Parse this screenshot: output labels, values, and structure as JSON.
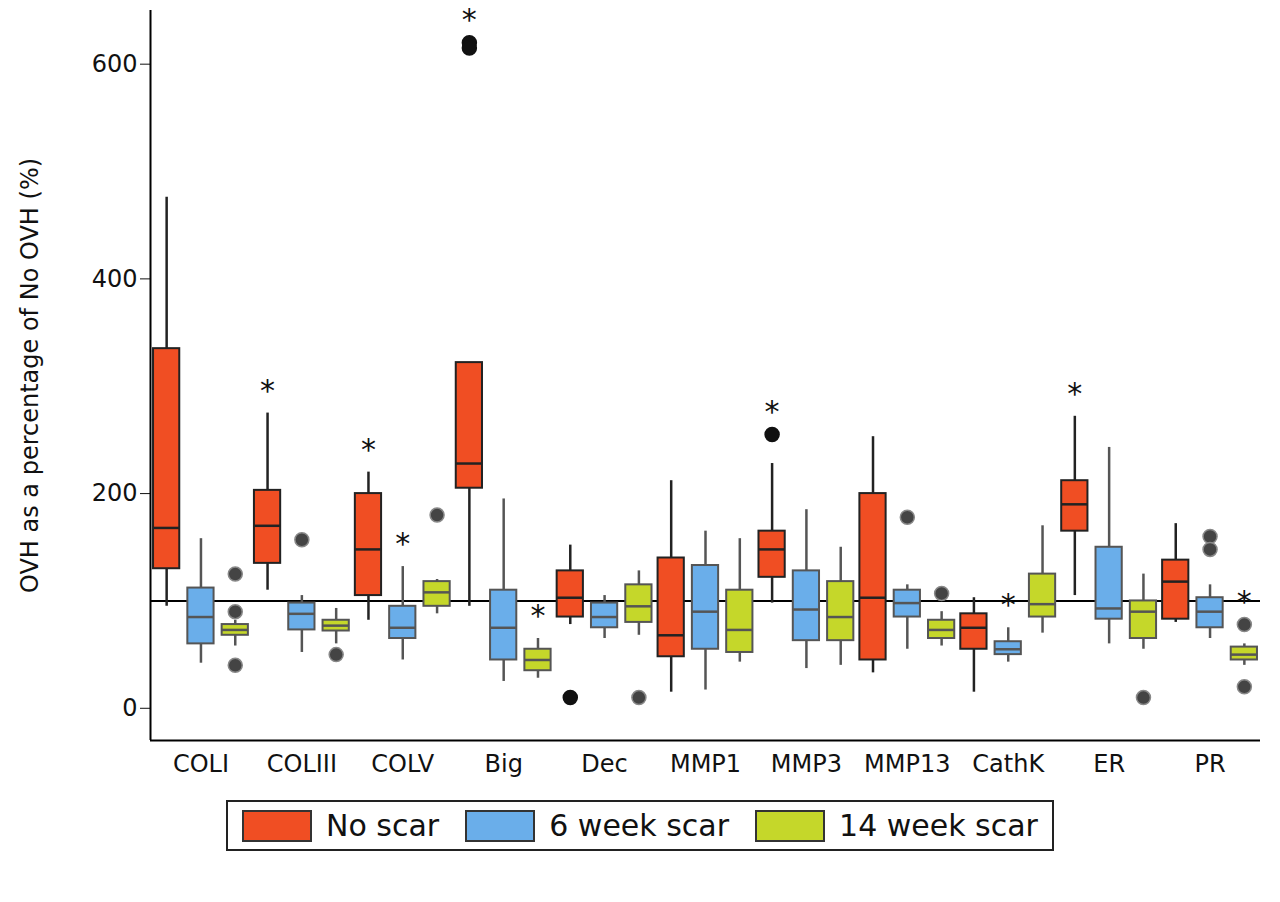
{
  "chart_data": {
    "type": "box",
    "y_label": "OVH as a percentage of No OVH (%)",
    "categories": [
      "COLI",
      "COLIII",
      "COLV",
      "Big",
      "Dec",
      "MMP1",
      "MMP3",
      "MMP13",
      "CathK",
      "ER",
      "PR"
    ],
    "ylim": [
      -30,
      650
    ],
    "yticks": [
      0,
      200,
      400,
      600
    ],
    "reference_line": 100,
    "significance_label": "*",
    "legend": "bottom",
    "series": [
      {
        "name": "No scar",
        "color": "#f04e23",
        "stats": [
          {
            "min": 95,
            "q1": 130,
            "median": 168,
            "q3": 335,
            "max": 476,
            "outliers": [],
            "significant": false
          },
          {
            "min": 110,
            "q1": 135,
            "median": 170,
            "q3": 203,
            "max": 275,
            "outliers": [],
            "significant": true
          },
          {
            "min": 82,
            "q1": 105,
            "median": 148,
            "q3": 200,
            "max": 220,
            "outliers": [],
            "significant": true
          },
          {
            "min": 95,
            "q1": 205,
            "median": 228,
            "q3": 322,
            "max": 322,
            "outliers": [
              620,
              615
            ],
            "significant": true
          },
          {
            "min": 78,
            "q1": 85,
            "median": 103,
            "q3": 128,
            "max": 152,
            "outliers": [
              10
            ],
            "significant": false
          },
          {
            "min": 15,
            "q1": 48,
            "median": 68,
            "q3": 140,
            "max": 212,
            "outliers": [],
            "significant": false
          },
          {
            "min": 98,
            "q1": 122,
            "median": 148,
            "q3": 165,
            "max": 228,
            "outliers": [
              255
            ],
            "significant": true
          },
          {
            "min": 33,
            "q1": 45,
            "median": 103,
            "q3": 200,
            "max": 253,
            "outliers": [],
            "significant": false
          },
          {
            "min": 15,
            "q1": 55,
            "median": 75,
            "q3": 88,
            "max": 103,
            "outliers": [],
            "significant": false
          },
          {
            "min": 105,
            "q1": 165,
            "median": 190,
            "q3": 212,
            "max": 272,
            "outliers": [],
            "significant": true
          },
          {
            "min": 80,
            "q1": 83,
            "median": 118,
            "q3": 138,
            "max": 172,
            "outliers": [],
            "significant": false
          }
        ]
      },
      {
        "name": "6 week scar",
        "color": "#6aaeea",
        "stats": [
          {
            "min": 42,
            "q1": 60,
            "median": 85,
            "q3": 112,
            "max": 158,
            "outliers": [],
            "significant": false
          },
          {
            "min": 52,
            "q1": 73,
            "median": 88,
            "q3": 98,
            "max": 105,
            "outliers": [
              157
            ],
            "significant": false
          },
          {
            "min": 45,
            "q1": 65,
            "median": 75,
            "q3": 95,
            "max": 132,
            "outliers": [],
            "significant": true
          },
          {
            "min": 25,
            "q1": 45,
            "median": 75,
            "q3": 110,
            "max": 195,
            "outliers": [],
            "significant": false
          },
          {
            "min": 65,
            "q1": 75,
            "median": 85,
            "q3": 98,
            "max": 105,
            "outliers": [],
            "significant": false
          },
          {
            "min": 17,
            "q1": 55,
            "median": 90,
            "q3": 133,
            "max": 165,
            "outliers": [],
            "significant": false
          },
          {
            "min": 37,
            "q1": 63,
            "median": 92,
            "q3": 128,
            "max": 185,
            "outliers": [],
            "significant": false
          },
          {
            "min": 55,
            "q1": 85,
            "median": 98,
            "q3": 110,
            "max": 115,
            "outliers": [
              178
            ],
            "significant": false
          },
          {
            "min": 43,
            "q1": 50,
            "median": 55,
            "q3": 62,
            "max": 75,
            "outliers": [],
            "significant": true
          },
          {
            "min": 60,
            "q1": 83,
            "median": 93,
            "q3": 150,
            "max": 243,
            "outliers": [],
            "significant": false
          },
          {
            "min": 65,
            "q1": 75,
            "median": 90,
            "q3": 103,
            "max": 115,
            "outliers": [
              160,
              148
            ],
            "significant": false
          }
        ]
      },
      {
        "name": "14 week scar",
        "color": "#c5d72a",
        "stats": [
          {
            "min": 58,
            "q1": 68,
            "median": 73,
            "q3": 78,
            "max": 82,
            "outliers": [
              125,
              90,
              40
            ],
            "significant": false
          },
          {
            "min": 60,
            "q1": 72,
            "median": 77,
            "q3": 82,
            "max": 93,
            "outliers": [
              50
            ],
            "significant": false
          },
          {
            "min": 88,
            "q1": 95,
            "median": 108,
            "q3": 118,
            "max": 120,
            "outliers": [
              180
            ],
            "significant": false
          },
          {
            "min": 28,
            "q1": 35,
            "median": 45,
            "q3": 55,
            "max": 65,
            "outliers": [],
            "significant": true
          },
          {
            "min": 68,
            "q1": 80,
            "median": 95,
            "q3": 115,
            "max": 128,
            "outliers": [
              10
            ],
            "significant": false
          },
          {
            "min": 43,
            "q1": 52,
            "median": 73,
            "q3": 110,
            "max": 158,
            "outliers": [],
            "significant": false
          },
          {
            "min": 40,
            "q1": 63,
            "median": 85,
            "q3": 118,
            "max": 150,
            "outliers": [],
            "significant": false
          },
          {
            "min": 58,
            "q1": 65,
            "median": 73,
            "q3": 82,
            "max": 90,
            "outliers": [
              107
            ],
            "significant": false
          },
          {
            "min": 70,
            "q1": 85,
            "median": 97,
            "q3": 125,
            "max": 170,
            "outliers": [],
            "significant": false
          },
          {
            "min": 55,
            "q1": 65,
            "median": 90,
            "q3": 100,
            "max": 125,
            "outliers": [
              10
            ],
            "significant": false
          },
          {
            "min": 40,
            "q1": 45,
            "median": 50,
            "q3": 57,
            "max": 60,
            "outliers": [
              78,
              20
            ],
            "significant": true
          }
        ]
      }
    ]
  }
}
